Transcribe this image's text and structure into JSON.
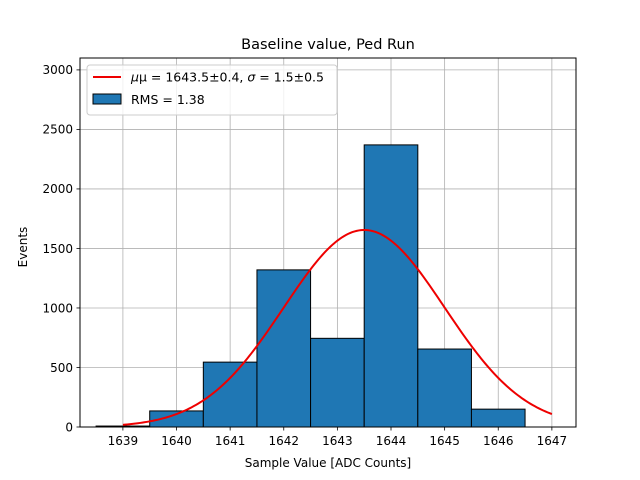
{
  "chart_data": {
    "type": "bar",
    "title": "Baseline value, Ped Run",
    "xlabel": "Sample Value [ADC Counts]",
    "ylabel": "Events",
    "xlim": [
      1638.2,
      1647.45
    ],
    "ylim": [
      0,
      3100
    ],
    "xticks": [
      1639,
      1640,
      1641,
      1642,
      1643,
      1644,
      1645,
      1646,
      1647
    ],
    "yticks": [
      0,
      500,
      1000,
      1500,
      2000,
      2500,
      3000
    ],
    "grid": true,
    "legend_placement": "top-left",
    "histogram": {
      "name": "RMS = 1.38",
      "color": "#1f77b4",
      "edge_color": "#000000",
      "bin_edges": [
        1638.5,
        1639.5,
        1640.5,
        1641.5,
        1642.5,
        1643.5,
        1644.5,
        1645.5,
        1646.5
      ],
      "counts": [
        8,
        135,
        545,
        1320,
        745,
        2370,
        655,
        150
      ]
    },
    "fit": {
      "name_prefix": "μ = 1643.5±0.4, ",
      "name_sigma": "σ",
      "name_suffix": " = 1.5±0.5",
      "color": "#ee0000",
      "mu": 1643.5,
      "sigma": 1.5,
      "amplitude": 1655,
      "x_range": [
        1639,
        1647
      ]
    }
  }
}
